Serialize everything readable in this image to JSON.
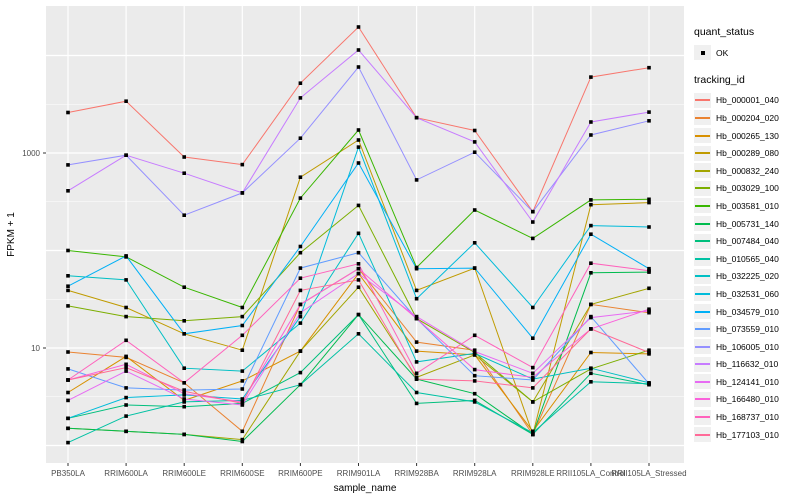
{
  "legend": {
    "quant_status_title": "quant_status",
    "quant_status_items": [
      {
        "label": "OK",
        "marker": "black-point"
      }
    ],
    "tracking_title": "tracking_id"
  },
  "chart_data": {
    "type": "line",
    "title": "",
    "xlabel": "sample_name",
    "ylabel": "FPKM + 1",
    "y_scale": "log10",
    "grid": "on",
    "legend_position": "right",
    "panel_background": "#EBEBEB",
    "grid_color": "#FFFFFF",
    "point_color": "#000000",
    "tick_text_color": "#4D4D4D",
    "y_ticks": [
      {
        "value": 1000,
        "label": "1000"
      },
      {
        "value": 10,
        "label": "10"
      }
    ],
    "y_range_log10": [
      -0.18,
      4.47
    ],
    "categories": [
      "PB350LA",
      "RRIM600LA",
      "RRIM600LE",
      "RRIM600SE",
      "RRIM600PE",
      "RRIM901LA",
      "RRIM928BA",
      "RRIM928LA",
      "RRIM928LE",
      "RRII105LA_Control",
      "RRII105LA_Stressed"
    ],
    "series": [
      {
        "name": "Hb_000001_040",
        "color": "#F8766D",
        "values": [
          2600,
          3400,
          910,
          760,
          5200,
          19600,
          2300,
          1700,
          250,
          6000,
          7500
        ]
      },
      {
        "name": "Hb_000204_020",
        "color": "#EA8331",
        "values": [
          9.1,
          8.0,
          4.4,
          1.4,
          28,
          65,
          11.5,
          9.5,
          1.3,
          28,
          23
        ]
      },
      {
        "name": "Hb_000265_130",
        "color": "#D89000",
        "values": [
          3.5,
          8.2,
          2.9,
          4.6,
          9.3,
          58,
          9.3,
          8.5,
          1.4,
          9.0,
          8.7
        ]
      },
      {
        "name": "Hb_000289_080",
        "color": "#C09B00",
        "values": [
          39,
          26,
          14,
          9.5,
          565,
          1360,
          39,
          66,
          1.3,
          295,
          310
        ]
      },
      {
        "name": "Hb_000832_240",
        "color": "#A3A500",
        "values": [
          1.5,
          1.4,
          1.3,
          1.15,
          9.3,
          42,
          5.0,
          8.5,
          2.8,
          28,
          41
        ]
      },
      {
        "name": "Hb_003029_100",
        "color": "#7CAE00",
        "values": [
          27,
          21,
          19,
          21,
          95,
          290,
          20,
          9.0,
          2.8,
          6.1,
          9.5
        ]
      },
      {
        "name": "Hb_003581_010",
        "color": "#39B600",
        "values": [
          100,
          86,
          42,
          26,
          345,
          1720,
          67,
          260,
          133,
          330,
          335
        ]
      },
      {
        "name": "Hb_005731_140",
        "color": "#00BB4E",
        "values": [
          1.5,
          1.4,
          1.3,
          1.1,
          4.2,
          22,
          4.8,
          3.4,
          1.3,
          59,
          60
        ]
      },
      {
        "name": "Hb_007484_040",
        "color": "#00BF7D",
        "values": [
          1.9,
          2.6,
          2.5,
          2.7,
          5.6,
          22,
          2.7,
          2.9,
          1.3,
          5.5,
          4.2
        ]
      },
      {
        "name": "Hb_010565_040",
        "color": "#00C1A3",
        "values": [
          1.07,
          2.0,
          2.8,
          2.9,
          4.2,
          14,
          3.5,
          2.8,
          1.35,
          4.5,
          4.3
        ]
      },
      {
        "name": "Hb_032225_020",
        "color": "#00BFC4",
        "values": [
          55,
          50,
          6.2,
          5.8,
          18,
          150,
          7.2,
          8.8,
          4.8,
          6.2,
          4.4
        ]
      },
      {
        "name": "Hb_032531_060",
        "color": "#00BBDA",
        "values": [
          1.9,
          3.1,
          3.3,
          3.0,
          21,
          1150,
          32,
          120,
          26,
          180,
          174
        ]
      },
      {
        "name": "Hb_034579_010",
        "color": "#00B0F6",
        "values": [
          43,
          88,
          14,
          17,
          110,
          790,
          65,
          66,
          12.6,
          147,
          65
        ]
      },
      {
        "name": "Hb_073559_010",
        "color": "#619CFF",
        "values": [
          6.1,
          3.9,
          3.7,
          3.8,
          66,
          95,
          20,
          5.2,
          4.7,
          21,
          4.3
        ]
      },
      {
        "name": "Hb_106005_010",
        "color": "#9590FF",
        "values": [
          755,
          950,
          230,
          390,
          1420,
          7620,
          530,
          1020,
          250,
          1530,
          2140
        ]
      },
      {
        "name": "Hb_116632_010",
        "color": "#C77CFF",
        "values": [
          410,
          950,
          620,
          390,
          3670,
          11400,
          2300,
          1300,
          196,
          2080,
          2630
        ]
      },
      {
        "name": "Hb_124141_010",
        "color": "#E76BF3",
        "values": [
          2.9,
          5.8,
          3.0,
          2.6,
          23,
          58,
          21,
          9.2,
          5.5,
          20.5,
          24
        ]
      },
      {
        "name": "Hb_166480_010",
        "color": "#FA62DB",
        "values": [
          4.7,
          6.8,
          3.4,
          2.8,
          28,
          65,
          20,
          6.0,
          5.0,
          15.7,
          25
        ]
      },
      {
        "name": "Hb_168737_010",
        "color": "#FF62BC",
        "values": [
          4.7,
          12,
          4.4,
          13.5,
          52,
          73,
          5.5,
          13.5,
          6.3,
          74,
          62
        ]
      },
      {
        "name": "Hb_177103_010",
        "color": "#FF6A98",
        "values": [
          4.7,
          6.3,
          3.6,
          2.7,
          39,
          50,
          4.8,
          4.6,
          3.9,
          15.7,
          9.0
        ]
      }
    ]
  }
}
